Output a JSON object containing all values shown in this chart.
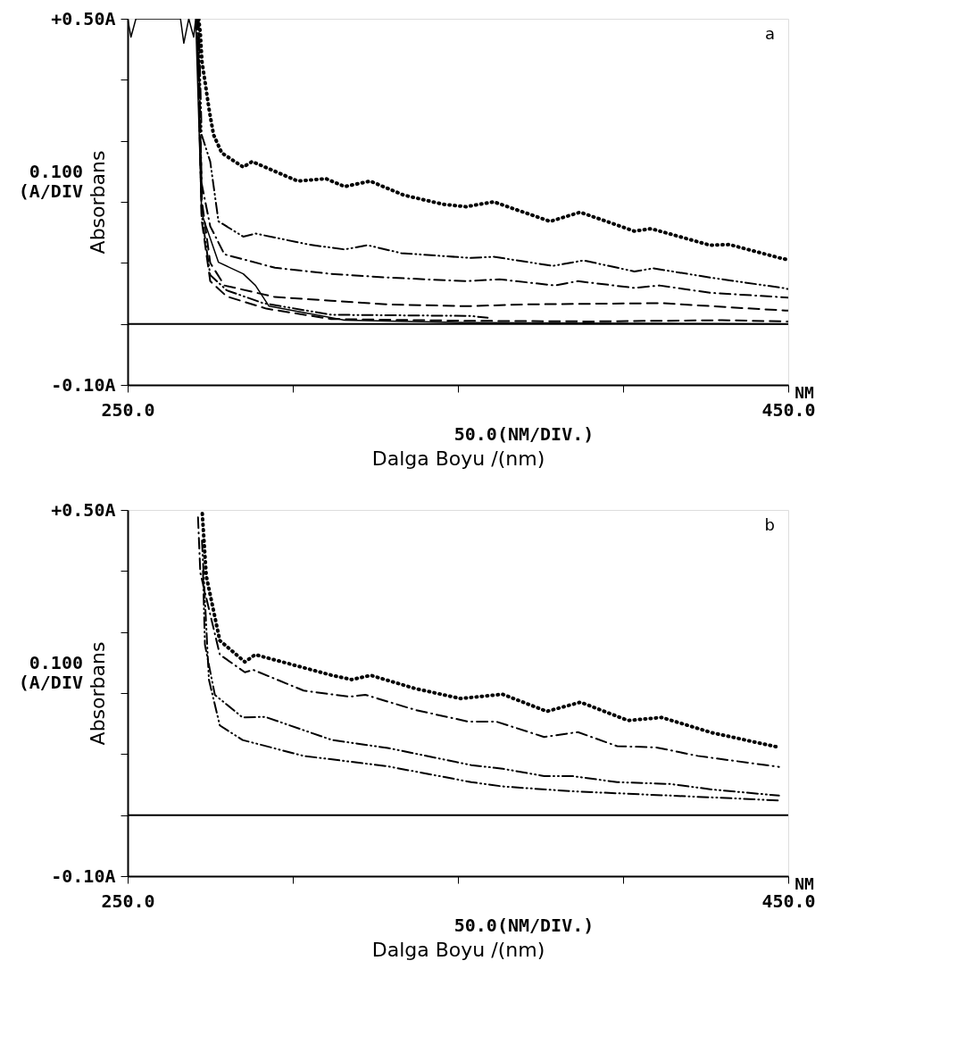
{
  "chart_data": [
    {
      "type": "line",
      "xlabel": "Dalga Boyu /(nm)",
      "ylabel": "Absorbans",
      "xlim": [
        250,
        450
      ],
      "ylim": [
        -0.1,
        0.5
      ],
      "xticks": [
        {
          "value": 250,
          "label": "250.0"
        },
        {
          "value": 300,
          "label": null
        },
        {
          "value": 350,
          "label": null
        },
        {
          "value": 400,
          "label": null
        },
        {
          "value": 450,
          "label": "450.0"
        }
      ],
      "yticks": [
        {
          "value": -0.1,
          "label": "-0.10A"
        },
        {
          "value": 0,
          "label": null
        },
        {
          "value": 0.1,
          "label": null
        },
        {
          "value": 0.2,
          "label": null
        },
        {
          "value": 0.3,
          "label": null
        },
        {
          "value": 0.4,
          "label": null
        },
        {
          "value": 0.5,
          "label": "+0.50A"
        }
      ],
      "annotations": [
        "a",
        "0.100 (A/DIV",
        "50.0(NM/DIV.)",
        "NM"
      ],
      "ref_lines": [
        {
          "axis": "y",
          "value": 0,
          "color": "#000000",
          "line_style": "solid"
        }
      ],
      "grid": false,
      "marker": "none",
      "series": [
        {
          "color": "#000000",
          "line_style": "dotted",
          "x": [
            271.5,
            272,
            272.5,
            273.2,
            274.7,
            276,
            278.5,
            285,
            287.7,
            301.5,
            310,
            315.7,
            323.4,
            333.6,
            345.5,
            352.4,
            360.8,
            377.9,
            387,
            403.4,
            408.5,
            426.3,
            432.2,
            447.5,
            450
          ],
          "values": [
            0.5,
            0.477,
            0.43,
            0.405,
            0.35,
            0.31,
            0.28,
            0.257,
            0.266,
            0.234,
            0.238,
            0.225,
            0.234,
            0.211,
            0.196,
            0.192,
            0.2,
            0.168,
            0.183,
            0.152,
            0.156,
            0.129,
            0.13,
            0.108,
            0.105
          ]
        },
        {
          "color": "#000000",
          "line_style": "dashdotdot",
          "x": [
            271.5,
            272.4,
            275,
            277.5,
            285,
            288.7,
            304.8,
            315.7,
            322.6,
            332.8,
            354,
            360.8,
            378.7,
            388,
            403.4,
            409.2,
            426.3,
            448.2,
            450
          ],
          "values": [
            0.5,
            0.31,
            0.266,
            0.168,
            0.143,
            0.148,
            0.13,
            0.122,
            0.129,
            0.116,
            0.108,
            0.11,
            0.095,
            0.104,
            0.086,
            0.091,
            0.076,
            0.059,
            0.057
          ]
        },
        {
          "color": "#000000",
          "line_style": "dashdot",
          "x": [
            271.3,
            272.4,
            275,
            279.3,
            294.6,
            311.6,
            328.5,
            352.4,
            362.6,
            379.4,
            386.3,
            403.4,
            411,
            426.3,
            447.5,
            450
          ],
          "values": [
            0.5,
            0.23,
            0.16,
            0.114,
            0.092,
            0.082,
            0.076,
            0.07,
            0.073,
            0.063,
            0.07,
            0.059,
            0.063,
            0.051,
            0.044,
            0.043
          ]
        },
        {
          "color": "#000000",
          "line_style": "dashed",
          "x": [
            271.2,
            272.5,
            275,
            279.3,
            294.6,
            311.6,
            328.5,
            352.4,
            371,
            411.8,
            439,
            449.2,
            450
          ],
          "values": [
            0.5,
            0.2,
            0.1,
            0.063,
            0.044,
            0.038,
            0.032,
            0.029,
            0.032,
            0.034,
            0.025,
            0.022,
            0.022
          ]
        },
        {
          "color": "#000000",
          "line_style": "dashdotdot",
          "x": [
            271,
            272.4,
            275,
            280,
            291,
            311.6,
            354,
            359
          ],
          "values": [
            0.5,
            0.18,
            0.08,
            0.055,
            0.034,
            0.015,
            0.013,
            0.01
          ]
        },
        {
          "color": "#000000",
          "line_style": "dashed",
          "x": [
            271,
            272.4,
            275,
            280,
            292,
            311.6,
            354,
            390,
            430,
            450
          ],
          "values": [
            0.5,
            0.17,
            0.07,
            0.045,
            0.025,
            0.008,
            0.005,
            0.004,
            0.006,
            0.004
          ]
        },
        {
          "color": "#000000",
          "line_style": "solid",
          "x": [
            250,
            251,
            252.5,
            266,
            267,
            268.5,
            270,
            270.6,
            272.4,
            277.5,
            285,
            288.7,
            292.8,
            303,
            315.7,
            354,
            400,
            450
          ],
          "values": [
            0.5,
            0.47,
            0.5,
            0.5,
            0.46,
            0.5,
            0.47,
            0.5,
            0.181,
            0.101,
            0.082,
            0.063,
            0.029,
            0.019,
            0.006,
            0.002,
            0.001,
            0.0
          ]
        }
      ]
    },
    {
      "type": "line",
      "xlabel": "Dalga Boyu /(nm)",
      "ylabel": "Absorbans",
      "xlim": [
        250,
        450
      ],
      "ylim": [
        -0.1,
        0.5
      ],
      "xticks": [
        {
          "value": 250,
          "label": "250.0"
        },
        {
          "value": 300,
          "label": null
        },
        {
          "value": 350,
          "label": null
        },
        {
          "value": 400,
          "label": null
        },
        {
          "value": 450,
          "label": "450.0"
        }
      ],
      "yticks": [
        {
          "value": -0.1,
          "label": "-0.10A"
        },
        {
          "value": 0,
          "label": null
        },
        {
          "value": 0.1,
          "label": null
        },
        {
          "value": 0.2,
          "label": null
        },
        {
          "value": 0.3,
          "label": null
        },
        {
          "value": 0.4,
          "label": null
        },
        {
          "value": 0.5,
          "label": "+0.50A"
        }
      ],
      "annotations": [
        "b",
        "0.100 (A/DIV",
        "50.0(NM/DIV.)",
        "NM"
      ],
      "ref_lines": [
        {
          "axis": "y",
          "value": 0,
          "color": "#000000",
          "line_style": "solid"
        }
      ],
      "grid": false,
      "marker": "none",
      "series": [
        {
          "color": "#000000",
          "line_style": "dotted",
          "x": [
            272.6,
            273.8,
            277.9,
            285.5,
            288.6,
            311.9,
            317.8,
            323.6,
            337.3,
            350.8,
            363.5,
            376.9,
            387.1,
            401.5,
            411.7,
            426.9,
            447.2
          ],
          "values": [
            0.494,
            0.392,
            0.286,
            0.251,
            0.263,
            0.229,
            0.222,
            0.229,
            0.207,
            0.191,
            0.198,
            0.17,
            0.185,
            0.155,
            0.16,
            0.135,
            0.111
          ]
        },
        {
          "color": "#000000",
          "line_style": "dashdot",
          "x": [
            271.3,
            272,
            277.9,
            285.5,
            288,
            303.3,
            317,
            322,
            337.3,
            353.3,
            361.7,
            376.1,
            386.3,
            398.2,
            409.9,
            422.6,
            447.2
          ],
          "values": [
            0.488,
            0.397,
            0.263,
            0.234,
            0.238,
            0.204,
            0.194,
            0.197,
            0.172,
            0.153,
            0.153,
            0.128,
            0.136,
            0.113,
            0.111,
            0.097,
            0.079
          ]
        },
        {
          "color": "#000000",
          "line_style": "dashdotdot",
          "x": [
            272.8,
            273.4,
            276.4,
            284.8,
            291.6,
            311.9,
            328.7,
            354,
            363.5,
            376.1,
            384.5,
            398.2,
            414.2,
            426.9,
            447.2
          ],
          "values": [
            0.4,
            0.279,
            0.197,
            0.16,
            0.161,
            0.123,
            0.11,
            0.082,
            0.076,
            0.064,
            0.064,
            0.054,
            0.051,
            0.042,
            0.032
          ]
        },
        {
          "color": "#000000",
          "line_style": "dashdotdot",
          "x": [
            272.5,
            274.6,
            277.9,
            284.8,
            303.3,
            328.7,
            354,
            363.5,
            384.5,
            401.5,
            426.9,
            447.2
          ],
          "values": [
            0.45,
            0.222,
            0.147,
            0.123,
            0.097,
            0.08,
            0.054,
            0.047,
            0.039,
            0.035,
            0.029,
            0.024
          ]
        }
      ]
    }
  ]
}
